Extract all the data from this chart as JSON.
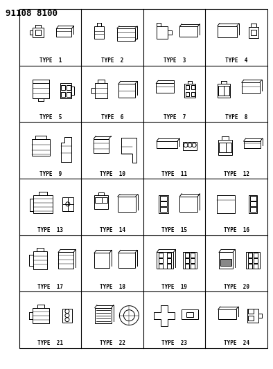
{
  "title": "91108 8100",
  "grid_rows": 6,
  "grid_cols": 4,
  "bg_color": "#ffffff",
  "line_color": "#000000",
  "cell_labels": [
    "TYPE  1",
    "TYPE  2",
    "TYPE  3",
    "TYPE  4",
    "TYPE  5",
    "TYPE  6",
    "TYPE  7",
    "TYPE  8",
    "TYPE  9",
    "TYPE  10",
    "TYPE  11",
    "TYPE  12",
    "TYPE  13",
    "TYPE  14",
    "TYPE  15",
    "TYPE  16",
    "TYPE  17",
    "TYPE  18",
    "TYPE  19",
    "TYPE  20",
    "TYPE  21",
    "TYPE  22",
    "TYPE  23",
    "TYPE  24"
  ],
  "title_fontsize": 9,
  "label_fontsize": 5.5,
  "fig_width": 3.94,
  "fig_height": 5.33
}
